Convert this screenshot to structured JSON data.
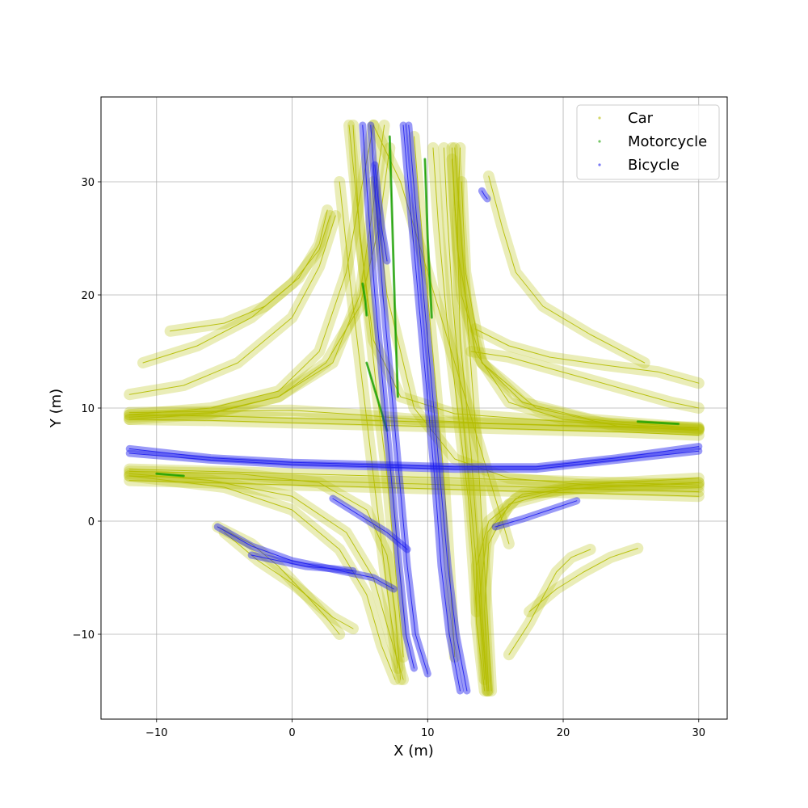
{
  "chart_data": {
    "type": "scatter",
    "title": "",
    "xlabel": "X (m)",
    "ylabel": "Y (m)",
    "xlim": [
      -14.1,
      32.1
    ],
    "ylim": [
      -17.5,
      37.5
    ],
    "xticks": [
      -10,
      0,
      10,
      20,
      30
    ],
    "yticks": [
      -10,
      0,
      10,
      20,
      30
    ],
    "xtick_labels": [
      "−10",
      "0",
      "10",
      "20",
      "30"
    ],
    "ytick_labels": [
      "−10",
      "0",
      "10",
      "20",
      "30"
    ],
    "grid": true,
    "legend_position": "top-right",
    "series": [
      {
        "name": "Car",
        "color": "#b5bd00",
        "tracks": [
          {
            "x": [
              -12,
              -6,
              0,
              6,
              12,
              18,
              24,
              30
            ],
            "y": [
              9.4,
              9.3,
              9.1,
              8.9,
              8.7,
              8.5,
              8.3,
              8.1
            ]
          },
          {
            "x": [
              -12,
              -6,
              0,
              6,
              12,
              18,
              24,
              30
            ],
            "y": [
              9.0,
              8.9,
              8.7,
              8.5,
              8.3,
              8.1,
              7.9,
              7.6
            ]
          },
          {
            "x": [
              -12,
              -6,
              0,
              6,
              12,
              18,
              24,
              30
            ],
            "y": [
              4.6,
              4.4,
              4.2,
              4.0,
              3.8,
              3.6,
              3.4,
              3.2
            ]
          },
          {
            "x": [
              -12,
              -6,
              0,
              6,
              12,
              18,
              24,
              30
            ],
            "y": [
              4.0,
              3.8,
              3.6,
              3.4,
              3.2,
              3.0,
              2.8,
              2.6
            ]
          },
          {
            "x": [
              4.2,
              4.8,
              5.5,
              6.2,
              7.0,
              7.6,
              8.2
            ],
            "y": [
              35,
              28,
              20,
              12,
              4,
              -4,
              -12
            ]
          },
          {
            "x": [
              11.2,
              11.4,
              11.8,
              12.4,
              13.0,
              13.6,
              14.4
            ],
            "y": [
              33,
              28,
              20,
              12,
              4,
              -4,
              -15
            ]
          },
          {
            "x": [
              12.0,
              12.3,
              12.8,
              13.3,
              13.8,
              14.2,
              14.7
            ],
            "y": [
              33,
              28,
              20,
              12,
              4,
              -4,
              -15
            ]
          },
          {
            "x": [
              10.4,
              10.8,
              11.4,
              12.2,
              13.0,
              13.6
            ],
            "y": [
              33,
              26,
              18,
              10,
              2,
              -8
            ]
          },
          {
            "x": [
              -12,
              -6,
              -1,
              3,
              5,
              6,
              6.8
            ],
            "y": [
              9.2,
              9.6,
              11,
              14,
              20,
              28,
              35
            ]
          },
          {
            "x": [
              -12,
              -6,
              -1,
              2,
              4,
              5.2,
              6
            ],
            "y": [
              9.4,
              10,
              11.5,
              15,
              22,
              30,
              35
            ]
          },
          {
            "x": [
              -12,
              -6,
              -1,
              2.5,
              5,
              6.4,
              7.2
            ],
            "y": [
              9.0,
              9.5,
              11,
              14,
              19,
              26,
              33
            ]
          },
          {
            "x": [
              4.5,
              5.0,
              6.0,
              8.0,
              12,
              20,
              30
            ],
            "y": [
              35,
              25,
              16,
              11,
              9.5,
              8.8,
              8.2
            ]
          },
          {
            "x": [
              11.8,
              12.2,
              13.5,
              16,
              20,
              26,
              30
            ],
            "y": [
              32,
              24,
              15,
              10.5,
              9,
              8.4,
              8.1
            ]
          },
          {
            "x": [
              12.5,
              12.8,
              14,
              17,
              22,
              30
            ],
            "y": [
              30,
              22,
              14,
              10.5,
              9,
              8.2
            ]
          },
          {
            "x": [
              30,
              24,
              18,
              14,
              12.5,
              12,
              11.8
            ],
            "y": [
              8.0,
              8.4,
              10,
              14,
              20,
              28,
              33
            ]
          },
          {
            "x": [
              30,
              22,
              16,
              12,
              9,
              7,
              6
            ],
            "y": [
              3.0,
              3.2,
              3.8,
              5.5,
              10,
              20,
              30
            ]
          },
          {
            "x": [
              -12,
              -6,
              0,
              4,
              6,
              7.2,
              8.2
            ],
            "y": [
              4.2,
              3.6,
              2.2,
              -1,
              -5,
              -10,
              -14
            ]
          },
          {
            "x": [
              -12,
              -5,
              0,
              3.5,
              5.5,
              6.6,
              7.6
            ],
            "y": [
              4.0,
              3.0,
              1.0,
              -2.5,
              -6.5,
              -11,
              -14
            ]
          },
          {
            "x": [
              14.5,
              14.2,
              14.5,
              16,
              20,
              26,
              30
            ],
            "y": [
              -15,
              -8,
              -2,
              1.5,
              2.8,
              3.2,
              3.4
            ]
          },
          {
            "x": [
              14.2,
              13.8,
              14.4,
              16.5,
              21,
              27,
              30
            ],
            "y": [
              -14,
              -7,
              -1,
              2,
              3.2,
              3.6,
              3.8
            ]
          },
          {
            "x": [
              8.0,
              7.6,
              7.0,
              5.5,
              2,
              -4,
              -12
            ],
            "y": [
              -14,
              -8,
              -3,
              1,
              3.4,
              4.2,
              4.4
            ]
          },
          {
            "x": [
              30,
              22,
              17,
              14.5,
              13.6,
              13.6,
              14.2
            ],
            "y": [
              3.4,
              3.0,
              2.4,
              0,
              -4,
              -9,
              -15
            ]
          },
          {
            "x": [
              -12,
              -8,
              -4,
              0,
              2,
              3.2
            ],
            "y": [
              11.2,
              12,
              14,
              18,
              22.5,
              27
            ]
          },
          {
            "x": [
              -11,
              -7,
              -3,
              0,
              2,
              2.8
            ],
            "y": [
              14,
              15.5,
              18,
              21,
              24,
              27
            ]
          },
          {
            "x": [
              -9,
              -5,
              -2,
              0.5,
              2,
              2.6
            ],
            "y": [
              16.8,
              17.5,
              19,
              21.5,
              24.5,
              27.5
            ]
          },
          {
            "x": [
              14.5,
              15.5,
              16.5,
              18.5,
              22,
              26
            ],
            "y": [
              30.5,
              26,
              22,
              19,
              16.5,
              14
            ]
          },
          {
            "x": [
              13.5,
              16,
              19,
              23,
              27,
              30
            ],
            "y": [
              17,
              15.5,
              14.5,
              13.8,
              13.2,
              12.2
            ]
          },
          {
            "x": [
              13.2,
              16,
              19,
              22,
              25,
              28,
              30
            ],
            "y": [
              15,
              14.5,
              13.5,
              12.5,
              11.5,
              10.5,
              10
            ]
          },
          {
            "x": [
              -5.5,
              -3,
              -1,
              1,
              2.5,
              3.5
            ],
            "y": [
              -0.5,
              -2,
              -4,
              -6.5,
              -8.5,
              -10
            ]
          },
          {
            "x": [
              -5,
              -2.5,
              0,
              1.5,
              3,
              4.5
            ],
            "y": [
              -1,
              -3.5,
              -5.5,
              -7,
              -8.5,
              -9.5
            ]
          },
          {
            "x": [
              16,
              17.5,
              18.6,
              19.5,
              20.6,
              22
            ],
            "y": [
              -11.8,
              -9,
              -6.5,
              -4.5,
              -3.2,
              -2.5
            ]
          },
          {
            "x": [
              17.5,
              19.5,
              21.5,
              23.5,
              25.5
            ],
            "y": [
              -8,
              -6,
              -4.5,
              -3.2,
              -2.4
            ]
          },
          {
            "x": [
              6,
              8,
              10,
              12,
              14,
              16
            ],
            "y": [
              35,
              30,
              22,
              14,
              6,
              -2
            ]
          },
          {
            "x": [
              9,
              9.4,
              10,
              10.6,
              11.2,
              11.6,
              12
            ],
            "y": [
              34,
              28,
              20,
              12,
              4,
              -4,
              -12
            ]
          },
          {
            "x": [
              -12,
              -6,
              0,
              5,
              10,
              16,
              22,
              30
            ],
            "y": [
              9.6,
              9.7,
              9.8,
              9.4,
              8.9,
              8.6,
              8.4,
              8.3
            ]
          },
          {
            "x": [
              -12,
              -6,
              0,
              6,
              12,
              18,
              24,
              30
            ],
            "y": [
              3.6,
              3.4,
              3.2,
              3.0,
              2.8,
              2.6,
              2.4,
              2.2
            ]
          },
          {
            "x": [
              3.5,
              4.2,
              5.2,
              6.2,
              7.0,
              7.8
            ],
            "y": [
              30,
              22,
              12,
              2,
              -6,
              -13
            ]
          },
          {
            "x": [
              12.4,
              12.2,
              12.4,
              13.2,
              13.8,
              14.4
            ],
            "y": [
              33,
              26,
              16,
              6,
              -4,
              -15
            ]
          }
        ]
      },
      {
        "name": "Motorcycle",
        "color": "#1aa000",
        "tracks": [
          {
            "x": [
              7.2,
              7.4,
              7.6,
              7.8
            ],
            "y": [
              34,
              26,
              18,
              11
            ]
          },
          {
            "x": [
              9.8,
              10.0,
              10.3
            ],
            "y": [
              32,
              25,
              18
            ]
          },
          {
            "x": [
              -10,
              -9,
              -8
            ],
            "y": [
              4.2,
              4.1,
              4.0
            ]
          },
          {
            "x": [
              5.2,
              5.4,
              5.5
            ],
            "y": [
              21,
              19.5,
              18.2
            ]
          },
          {
            "x": [
              25.5,
              27,
              28.5
            ],
            "y": [
              8.8,
              8.7,
              8.6
            ]
          },
          {
            "x": [
              5.5,
              6,
              6.5,
              7
            ],
            "y": [
              14,
              12,
              10,
              8
            ]
          }
        ]
      },
      {
        "name": "Bicycle",
        "color": "#2020ee",
        "tracks": [
          {
            "x": [
              5.2,
              5.6,
              6.1,
              6.7,
              7.3,
              7.9,
              8.4,
              9.0
            ],
            "y": [
              35,
              28,
              20,
              12,
              4,
              -4,
              -10,
              -13
            ]
          },
          {
            "x": [
              5.8,
              6.2,
              6.7,
              7.3,
              7.9,
              8.5,
              9.1,
              10.0
            ],
            "y": [
              35,
              28,
              20,
              12,
              4,
              -4,
              -10,
              -13.5
            ]
          },
          {
            "x": [
              8.2,
              8.7,
              9.3,
              9.9,
              10.5,
              11.0,
              11.6,
              12.4
            ],
            "y": [
              35,
              28,
              20,
              12,
              4,
              -4,
              -10,
              -15
            ]
          },
          {
            "x": [
              8.6,
              9.1,
              9.7,
              10.3,
              10.9,
              11.5,
              12.1,
              12.9
            ],
            "y": [
              35,
              28,
              20,
              12,
              4,
              -4,
              -10,
              -15
            ]
          },
          {
            "x": [
              -12,
              -6,
              0,
              6,
              12,
              18,
              24,
              30
            ],
            "y": [
              6.4,
              5.6,
              5.2,
              5.0,
              4.8,
              4.8,
              5.6,
              6.6
            ]
          },
          {
            "x": [
              -12,
              -6,
              0,
              6,
              12,
              18,
              24,
              30
            ],
            "y": [
              6.0,
              5.4,
              5.0,
              4.8,
              4.6,
              4.6,
              5.4,
              6.2
            ]
          },
          {
            "x": [
              -5.5,
              -3,
              0,
              2,
              4,
              6,
              7.5
            ],
            "y": [
              -0.5,
              -2.2,
              -3.5,
              -4,
              -4.5,
              -5,
              -6
            ]
          },
          {
            "x": [
              -3,
              -1,
              1,
              3,
              4.5
            ],
            "y": [
              -3,
              -3.5,
              -4,
              -4.2,
              -4.4
            ]
          },
          {
            "x": [
              15,
              17,
              19,
              21
            ],
            "y": [
              -0.5,
              0.2,
              1.0,
              1.8
            ]
          },
          {
            "x": [
              3,
              5,
              7,
              8.5
            ],
            "y": [
              2,
              0.5,
              -1,
              -2.5
            ]
          },
          {
            "x": [
              14,
              14.2,
              14.4
            ],
            "y": [
              29.2,
              28.8,
              28.5
            ]
          },
          {
            "x": [
              6.1,
              6.3,
              6.6,
              7.0
            ],
            "y": [
              31.5,
              29,
              26,
              23
            ]
          }
        ]
      }
    ]
  }
}
